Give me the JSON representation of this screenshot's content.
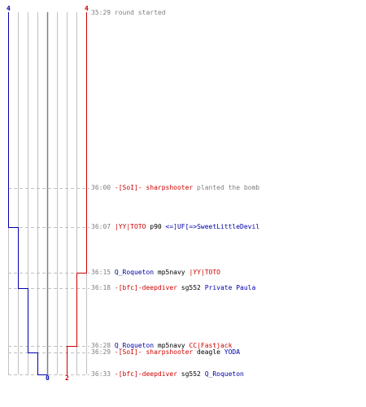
{
  "colors": {
    "blue_team": "#0000aa",
    "red_team": "#cc0000",
    "grid": "#c0c0c0",
    "dash": "#c0c0c0",
    "time_text": "#808080",
    "center_line": "#808080"
  },
  "counts": {
    "blue_start": "4",
    "red_start": "4",
    "blue_end": "0",
    "red_end": "2"
  },
  "events": [
    {
      "time": "35:29",
      "parts": [
        {
          "text": "round started",
          "cls": "g"
        }
      ]
    },
    {
      "time": "36:00",
      "parts": [
        {
          "text": "-[SoI]- sharpshooter",
          "cls": "r"
        },
        {
          "text": " planted the bomb",
          "cls": "g"
        }
      ]
    },
    {
      "time": "36:07",
      "parts": [
        {
          "text": "|YY|TOTO",
          "cls": "r"
        },
        {
          "text": " p90 ",
          "cls": "t"
        },
        {
          "text": "<=]UF[=>SweetLittleDevil",
          "cls": "b"
        }
      ]
    },
    {
      "time": "36:15",
      "parts": [
        {
          "text": "Q_Roqueton",
          "cls": "b"
        },
        {
          "text": " mp5navy ",
          "cls": "t"
        },
        {
          "text": "|YY|TOTO",
          "cls": "r"
        }
      ]
    },
    {
      "time": "36:18",
      "parts": [
        {
          "text": "-[bfc]-deepdiver",
          "cls": "r"
        },
        {
          "text": " sg552 ",
          "cls": "t"
        },
        {
          "text": "Private Paula",
          "cls": "b"
        }
      ]
    },
    {
      "time": "36:28",
      "parts": [
        {
          "text": "Q_Roqueton",
          "cls": "b"
        },
        {
          "text": " mp5navy ",
          "cls": "t"
        },
        {
          "text": "CC|Fastjack",
          "cls": "r"
        }
      ]
    },
    {
      "time": "36:29",
      "parts": [
        {
          "text": "-[SoI]- sharpshooter",
          "cls": "r"
        },
        {
          "text": " deagle ",
          "cls": "t"
        },
        {
          "text": "YODA",
          "cls": "b"
        }
      ]
    },
    {
      "time": "36:33",
      "parts": [
        {
          "text": "-[bfc]-deepdiver",
          "cls": "r"
        },
        {
          "text": " sg552 ",
          "cls": "t"
        },
        {
          "text": "Q_Roqueton",
          "cls": "b"
        }
      ]
    }
  ]
}
